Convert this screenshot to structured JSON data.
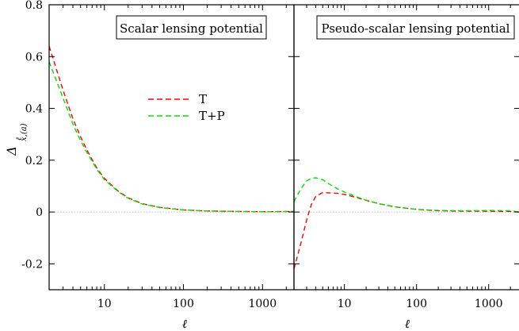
{
  "chart_data": [
    {
      "type": "line",
      "x_scale": "log",
      "xlim": [
        2,
        2500
      ],
      "ylim": [
        -0.3,
        0.8
      ],
      "xlabel": "ℓ",
      "ylabel": "Δ",
      "ylabel_sub": "ℓ",
      "ylabel_sup": "x,(a)",
      "y_ticks": [
        -0.2,
        0,
        0.2,
        0.4,
        0.6,
        0.8
      ],
      "y_tick_labels": [
        "-0.2",
        "0",
        "0.2",
        "0.4",
        "0.6",
        "0.8"
      ],
      "x_ticks": [
        10,
        100,
        1000
      ],
      "x_tick_labels": [
        "10",
        "100",
        "1000"
      ],
      "title": "Scalar lensing potential",
      "zero_line": true,
      "legend": {
        "placement": "upper-center",
        "entries": [
          "T",
          "T+P"
        ]
      },
      "series": [
        {
          "name": "T",
          "color": "#ff0000",
          "x": [
            2,
            3,
            4,
            5,
            6,
            8,
            10,
            15,
            20,
            30,
            50,
            100,
            200,
            500,
            1000,
            2500
          ],
          "y": [
            0.64,
            0.47,
            0.36,
            0.29,
            0.24,
            0.17,
            0.13,
            0.08,
            0.055,
            0.032,
            0.018,
            0.008,
            0.004,
            0.002,
            0.001,
            0.002
          ]
        },
        {
          "name": "T+P",
          "color": "#00e000",
          "x": [
            2,
            3,
            4,
            5,
            6,
            8,
            10,
            15,
            20,
            30,
            50,
            100,
            200,
            500,
            1000,
            2500
          ],
          "y": [
            0.58,
            0.44,
            0.34,
            0.275,
            0.23,
            0.165,
            0.125,
            0.078,
            0.053,
            0.031,
            0.017,
            0.008,
            0.004,
            0.002,
            0.001,
            0.002
          ]
        }
      ]
    },
    {
      "type": "line",
      "x_scale": "log",
      "xlim": [
        2,
        2700
      ],
      "ylim": [
        -0.3,
        0.8
      ],
      "xlabel": "ℓ",
      "x_ticks": [
        10,
        100,
        1000
      ],
      "x_tick_labels": [
        "10",
        "100",
        "1000"
      ],
      "title": "Pseudo-scalar lensing potential",
      "zero_line": true,
      "series": [
        {
          "name": "T",
          "color": "#ff0000",
          "x": [
            2,
            2.5,
            3,
            3.5,
            4,
            5,
            6,
            8,
            10,
            15,
            20,
            30,
            50,
            100,
            200,
            500,
            1000,
            2000,
            2700
          ],
          "y": [
            -0.22,
            -0.12,
            -0.03,
            0.03,
            0.06,
            0.075,
            0.074,
            0.072,
            0.068,
            0.055,
            0.045,
            0.032,
            0.02,
            0.01,
            0.005,
            0.003,
            0.003,
            0.002,
            0.0
          ]
        },
        {
          "name": "T+P",
          "color": "#00e000",
          "x": [
            2,
            2.5,
            3,
            3.5,
            4,
            5,
            6,
            8,
            10,
            15,
            20,
            30,
            50,
            100,
            200,
            500,
            1000,
            2000,
            2700
          ],
          "y": [
            0.04,
            0.09,
            0.12,
            0.13,
            0.132,
            0.125,
            0.11,
            0.09,
            0.077,
            0.058,
            0.046,
            0.032,
            0.02,
            0.01,
            0.006,
            0.005,
            0.006,
            0.005,
            0.0
          ]
        }
      ]
    }
  ]
}
